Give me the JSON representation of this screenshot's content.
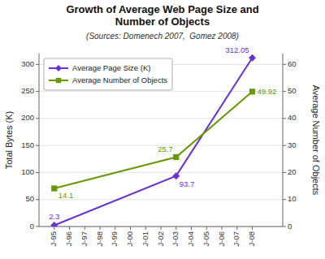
{
  "chart_data": {
    "type": "line",
    "title": "Growth of Average Web Page Size and\nNumber of Objects",
    "subtitle": "(Sources: Domenech 2007,  Gomez 2008)",
    "ylabel": "Total Bytes (K)",
    "y2label": "Average Number of Objects",
    "categories": [
      "J-95",
      "J-96",
      "J-97",
      "J-98",
      "J-99",
      "J-00",
      "J-01",
      "J-02",
      "J-03",
      "J-04",
      "J-05",
      "J-06",
      "J-07",
      "J-08"
    ],
    "series": [
      {
        "name": "Average Page Size (K)",
        "color": "#6633CC",
        "marker": "diamond",
        "x": [
          "J-95",
          "J-03",
          "J-08"
        ],
        "values": [
          2.3,
          93.7,
          312.05
        ]
      },
      {
        "name": "Average Number of Objects",
        "color": "#669900",
        "marker": "square",
        "axis": "y2",
        "x": [
          "J-95",
          "J-03",
          "J-08"
        ],
        "values": [
          14.1,
          25.7,
          49.92
        ]
      }
    ],
    "ylim": [
      0,
      320
    ],
    "yticks": [
      0,
      50,
      100,
      150,
      200,
      250,
      300
    ],
    "y2lim": [
      0,
      64
    ],
    "y2ticks": [
      0,
      10,
      20,
      30,
      40,
      50,
      60
    ],
    "grid": true,
    "legend": "upper left",
    "data_labels": true
  }
}
